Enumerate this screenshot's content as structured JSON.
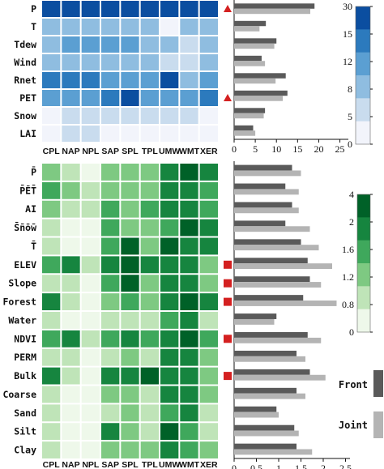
{
  "chart_data": [
    {
      "type": "heatmap",
      "panel": "climate",
      "columns": [
        "CPL",
        "NAP",
        "NPL",
        "SAP",
        "SPL",
        "TPL",
        "UMW",
        "WMT",
        "XER"
      ],
      "rows": [
        "P",
        "T",
        "Tdew",
        "Wind",
        "Rnet",
        "PET",
        "Snow",
        "LAI"
      ],
      "values": [
        [
          24,
          28,
          26,
          27,
          28,
          26,
          24,
          25,
          23
        ],
        [
          5,
          7,
          6,
          6,
          7,
          5,
          1,
          5,
          6
        ],
        [
          6,
          10,
          11,
          8,
          9,
          7,
          6,
          4,
          6
        ],
        [
          5,
          6,
          7,
          6,
          7,
          5,
          4,
          4,
          5
        ],
        [
          12,
          15,
          12,
          11,
          10,
          10,
          17,
          6,
          10
        ],
        [
          10,
          10,
          9,
          12,
          16,
          11,
          8,
          9,
          12
        ],
        [
          1,
          3,
          2,
          2,
          2,
          2,
          4,
          4,
          1
        ],
        [
          0,
          4,
          4,
          0,
          0,
          0,
          1,
          0,
          0
        ]
      ],
      "colorbar_ticks": [
        "30",
        "15",
        "12",
        "8",
        "5",
        "0"
      ],
      "marked_rows": [
        "P",
        "PET"
      ]
    },
    {
      "type": "bar",
      "panel": "climate-bars",
      "categories": [
        "P",
        "T",
        "Tdew",
        "Wind",
        "Rnet",
        "PET",
        "Snow",
        "LAI"
      ],
      "series": [
        {
          "name": "Front",
          "values": [
            19.0,
            7.5,
            10.0,
            6.5,
            12.2,
            12.6,
            7.3,
            4.5
          ]
        },
        {
          "name": "Joint",
          "values": [
            18.0,
            6.0,
            9.5,
            7.3,
            9.8,
            11.5,
            7.0,
            5.0
          ]
        }
      ],
      "xlim": [
        0,
        27
      ],
      "xticks": [
        "0",
        "5",
        "10",
        "15",
        "20",
        "25"
      ]
    },
    {
      "type": "heatmap",
      "panel": "landscape",
      "columns": [
        "CPL",
        "NAP",
        "NPL",
        "SAP",
        "SPL",
        "TPL",
        "UMW",
        "WMT",
        "XER"
      ],
      "rows": [
        "P̄",
        "P̄ĒT̄",
        "AI",
        "S̄n̄ōw̄",
        "T̄",
        "ELEV",
        "Slope",
        "Forest",
        "Water",
        "NDVI",
        "PERM",
        "Bulk",
        "Coarse",
        "Sand",
        "Silt",
        "Clay"
      ],
      "values": [
        [
          0.9,
          0.5,
          0.3,
          1.0,
          1.0,
          0.8,
          2.0,
          4.0,
          1.6
        ],
        [
          1.4,
          1.0,
          0.5,
          1.1,
          1.1,
          1.0,
          1.8,
          2.0,
          1.2
        ],
        [
          1.1,
          0.7,
          0.4,
          1.4,
          1.0,
          1.2,
          1.6,
          2.2,
          1.3
        ],
        [
          0.5,
          0.2,
          0.1,
          1.2,
          1.0,
          0.9,
          1.4,
          4.0,
          2.5
        ],
        [
          0.6,
          0.2,
          0.1,
          1.3,
          4.0,
          1.0,
          4.0,
          2.5,
          2.0
        ],
        [
          1.3,
          3.0,
          0.7,
          1.7,
          4.0,
          1.6,
          2.5,
          2.2,
          1.0
        ],
        [
          0.7,
          0.6,
          0.3,
          1.3,
          4.0,
          1.1,
          2.0,
          3.0,
          1.0
        ],
        [
          3.0,
          0.4,
          0.2,
          1.0,
          1.5,
          0.9,
          2.5,
          4.0,
          2.0
        ],
        [
          0.4,
          0.3,
          0.2,
          0.4,
          0.5,
          0.4,
          1.2,
          2.0,
          0.6
        ],
        [
          1.5,
          2.5,
          0.6,
          1.5,
          2.0,
          1.5,
          2.0,
          4.0,
          1.5
        ],
        [
          0.6,
          0.4,
          0.2,
          0.7,
          0.8,
          0.6,
          1.6,
          2.2,
          1.0
        ],
        [
          2.5,
          0.6,
          0.3,
          1.7,
          2.0,
          4.0,
          2.0,
          3.0,
          0.9
        ],
        [
          0.6,
          0.3,
          0.2,
          0.9,
          0.8,
          0.7,
          1.6,
          2.0,
          0.8
        ],
        [
          0.5,
          0.2,
          0.1,
          0.6,
          0.9,
          0.5,
          1.2,
          2.2,
          0.4
        ],
        [
          0.4,
          0.2,
          0.1,
          1.6,
          0.8,
          0.5,
          4.0,
          1.2,
          0.5
        ],
        [
          0.5,
          0.3,
          0.1,
          1.0,
          1.0,
          0.8,
          2.0,
          1.3,
          1.0
        ]
      ],
      "colorbar_ticks": [
        "4",
        "2",
        "1.6",
        "1.2",
        "0.8",
        "0"
      ],
      "marked_rows": [
        "ELEV",
        "Slope",
        "Forest",
        "NDVI",
        "Bulk"
      ]
    },
    {
      "type": "bar",
      "panel": "landscape-bars",
      "categories": [
        "P̄",
        "P̄ĒT̄",
        "AI",
        "S̄n̄ōw̄",
        "T̄",
        "ELEV",
        "Slope",
        "Forest",
        "Water",
        "NDVI",
        "PERM",
        "Bulk",
        "Coarse",
        "Sand",
        "Silt",
        "Clay"
      ],
      "series": [
        {
          "name": "Front",
          "values": [
            1.3,
            1.15,
            1.3,
            1.15,
            1.5,
            1.65,
            1.7,
            1.55,
            0.95,
            1.65,
            1.4,
            1.7,
            1.4,
            0.95,
            1.35,
            1.4
          ]
        },
        {
          "name": "Joint",
          "values": [
            1.5,
            1.45,
            1.45,
            1.7,
            1.9,
            2.2,
            1.95,
            2.3,
            0.9,
            1.95,
            1.6,
            2.05,
            1.6,
            1.0,
            1.45,
            1.75
          ]
        }
      ],
      "xlim": [
        0,
        2.6
      ],
      "xticks": [
        "0",
        "0.5",
        "1",
        "1.5",
        "2",
        "2.5"
      ]
    }
  ],
  "legend": {
    "front": "Front",
    "joint": "Joint"
  },
  "colors": {
    "blue_scale": [
      "#f2f4fb",
      "#c9dcee",
      "#8fbde0",
      "#5b9fd2",
      "#2c7abd",
      "#0b4ea0"
    ],
    "green_scale": [
      "#eef8ea",
      "#bfe4b8",
      "#7ec982",
      "#3fa85c",
      "#16853f",
      "#006128"
    ],
    "front_bar": "#5a5a5a",
    "joint_bar": "#b4b4b4",
    "marker": "#d42020"
  }
}
